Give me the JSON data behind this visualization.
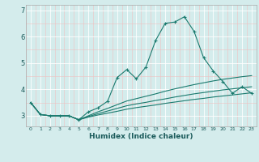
{
  "xlabel": "Humidex (Indice chaleur)",
  "background_color": "#d4ecec",
  "grid_color": "#ffffff",
  "line_color": "#1a7a6e",
  "x_ticks": [
    0,
    1,
    2,
    3,
    4,
    5,
    6,
    7,
    8,
    9,
    10,
    11,
    12,
    13,
    14,
    15,
    16,
    17,
    18,
    19,
    20,
    21,
    22,
    23
  ],
  "y_ticks": [
    3,
    4,
    5,
    6,
    7
  ],
  "xlim": [
    -0.5,
    23.5
  ],
  "ylim": [
    2.6,
    7.2
  ],
  "lines": [
    {
      "x": [
        0,
        1,
        2,
        3,
        4,
        5,
        6,
        7,
        8,
        9,
        10,
        11,
        12,
        13,
        14,
        15,
        16,
        17,
        18,
        19,
        20,
        21,
        22,
        23
      ],
      "y": [
        3.5,
        3.05,
        3.0,
        3.0,
        3.0,
        2.85,
        3.15,
        3.3,
        3.55,
        4.45,
        4.75,
        4.4,
        4.85,
        5.85,
        6.5,
        6.55,
        6.75,
        6.2,
        5.2,
        4.7,
        4.3,
        3.85,
        4.1,
        3.85
      ],
      "marker": "+"
    },
    {
      "x": [
        0,
        1,
        2,
        3,
        4,
        5,
        6,
        7,
        8,
        9,
        10,
        11,
        12,
        13,
        14,
        15,
        16,
        17,
        18,
        19,
        20,
        21,
        22,
        23
      ],
      "y": [
        3.5,
        3.05,
        3.0,
        3.0,
        3.0,
        2.85,
        3.0,
        3.15,
        3.28,
        3.42,
        3.56,
        3.65,
        3.74,
        3.83,
        3.93,
        4.02,
        4.1,
        4.18,
        4.25,
        4.32,
        4.38,
        4.43,
        4.48,
        4.52
      ],
      "marker": null
    },
    {
      "x": [
        0,
        1,
        2,
        3,
        4,
        5,
        6,
        7,
        8,
        9,
        10,
        11,
        12,
        13,
        14,
        15,
        16,
        17,
        18,
        19,
        20,
        21,
        22,
        23
      ],
      "y": [
        3.5,
        3.05,
        3.0,
        3.0,
        3.0,
        2.85,
        2.97,
        3.08,
        3.18,
        3.28,
        3.38,
        3.45,
        3.51,
        3.58,
        3.64,
        3.71,
        3.77,
        3.83,
        3.88,
        3.93,
        3.98,
        4.02,
        4.06,
        4.1
      ],
      "marker": null
    },
    {
      "x": [
        0,
        1,
        2,
        3,
        4,
        5,
        6,
        7,
        8,
        9,
        10,
        11,
        12,
        13,
        14,
        15,
        16,
        17,
        18,
        19,
        20,
        21,
        22,
        23
      ],
      "y": [
        3.5,
        3.05,
        3.0,
        3.0,
        3.0,
        2.85,
        2.95,
        3.03,
        3.1,
        3.17,
        3.25,
        3.31,
        3.36,
        3.41,
        3.47,
        3.52,
        3.57,
        3.62,
        3.66,
        3.71,
        3.75,
        3.79,
        3.83,
        3.87
      ],
      "marker": null
    }
  ]
}
